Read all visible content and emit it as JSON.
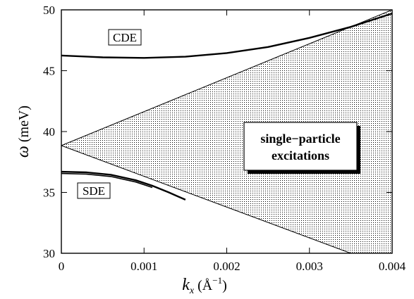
{
  "chart_data": {
    "type": "line",
    "xlabel": "k_x (Å^-1)",
    "ylabel": "ω (meV)",
    "xlim": [
      0,
      0.004
    ],
    "ylim": [
      30,
      50
    ],
    "x_ticks": [
      "0",
      "0.001",
      "0.002",
      "0.003",
      "0.004"
    ],
    "y_ticks": [
      "30",
      "35",
      "40",
      "45",
      "50"
    ],
    "x_tick_values": [
      0,
      0.001,
      0.002,
      0.003,
      0.004
    ],
    "y_tick_values": [
      30,
      35,
      40,
      45,
      50
    ],
    "series": [
      {
        "name": "CDE",
        "x": [
          0,
          0.0005,
          0.001,
          0.0015,
          0.002,
          0.0025,
          0.003,
          0.0035,
          0.004
        ],
        "y": [
          46.25,
          46.1,
          46.05,
          46.15,
          46.45,
          46.95,
          47.7,
          48.6,
          49.7
        ]
      },
      {
        "name": "SDE",
        "x": [
          0,
          0.0003,
          0.0006,
          0.0009,
          0.0011,
          0.0013,
          0.0015
        ],
        "y": [
          36.7,
          36.65,
          36.45,
          36.0,
          35.55,
          35.0,
          34.4
        ]
      }
    ],
    "shaded_region": {
      "name": "single-particle excitations",
      "vertex": [
        0,
        38.85
      ],
      "upper_edge_end": [
        0.004,
        50.0
      ],
      "lower_edge_end": [
        0.0035,
        30.0
      ]
    },
    "annotations": {
      "cde": "CDE",
      "sde": "SDE",
      "region_line1": "single−particle",
      "region_line2": "excitations"
    }
  }
}
